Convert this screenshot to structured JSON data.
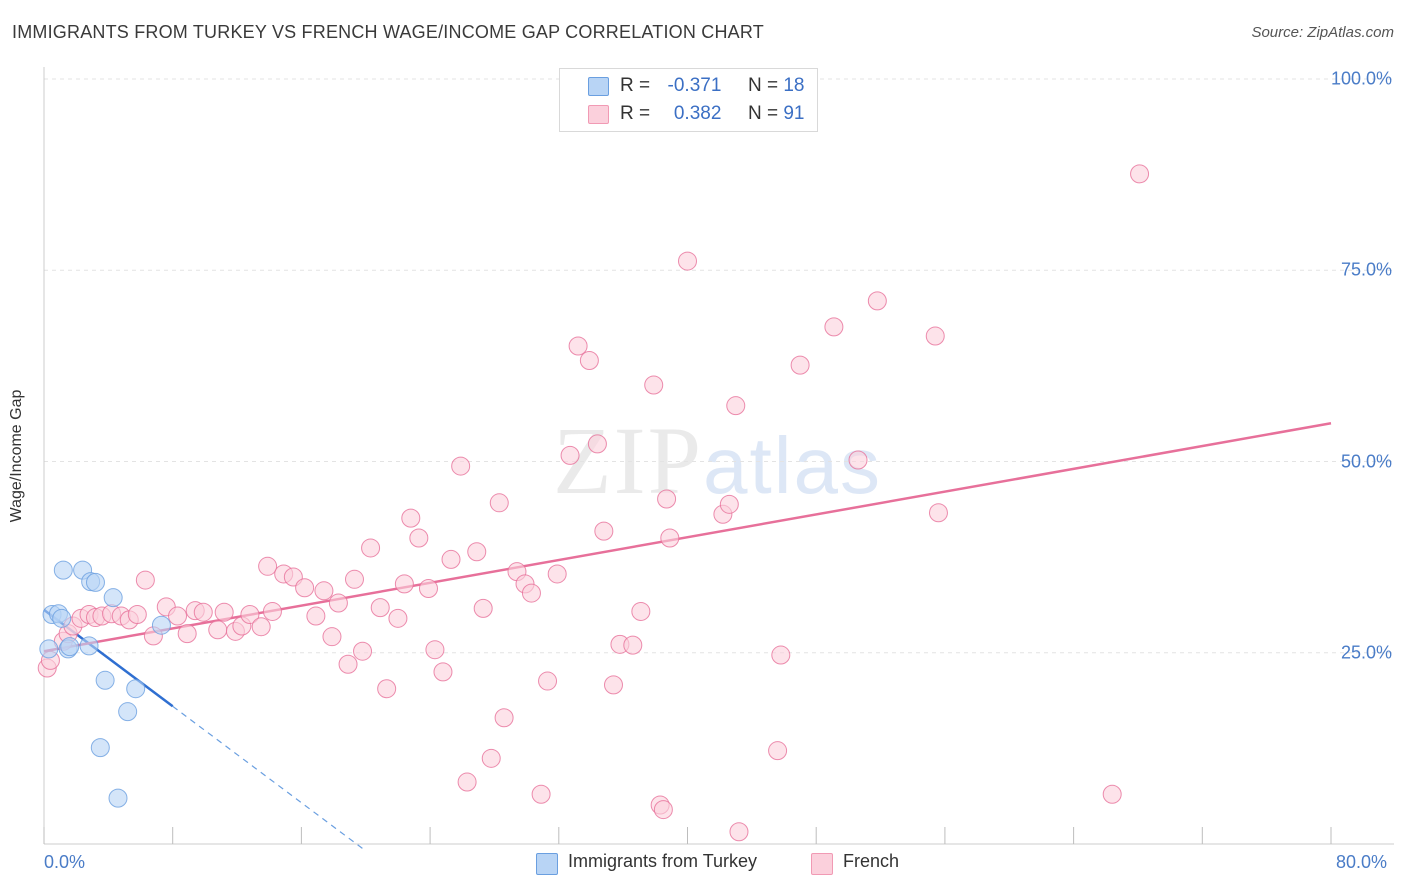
{
  "title": "IMMIGRANTS FROM TURKEY VS FRENCH WAGE/INCOME GAP CORRELATION CHART",
  "source": "Source: ZipAtlas.com",
  "watermark": {
    "zip": "ZIP",
    "atlas": "atlas"
  },
  "legend": {
    "r_label": "R =",
    "n_label": "N =",
    "rows": [
      {
        "r": "-0.371",
        "n": "18",
        "color": "#b8d4f5",
        "border": "#6a9fe0"
      },
      {
        "r": "0.382",
        "n": "91",
        "color": "#fbd0dc",
        "border": "#f19ab4"
      }
    ]
  },
  "bottom_legend": [
    {
      "label": "Immigrants from Turkey",
      "color": "#b8d4f5",
      "border": "#6a9fe0"
    },
    {
      "label": "French",
      "color": "#fbd0dc",
      "border": "#f19ab4"
    }
  ],
  "chart_data": {
    "type": "scatter",
    "title": "IMMIGRANTS FROM TURKEY VS FRENCH WAGE/INCOME GAP CORRELATION CHART",
    "xlabel": "",
    "ylabel": "Wage/Income Gap",
    "xlim": [
      0,
      80
    ],
    "ylim": [
      0,
      100
    ],
    "x_tick_labels": [
      "0.0%",
      "80.0%"
    ],
    "y_ticks": [
      25,
      50,
      75,
      100
    ],
    "y_tick_labels": [
      "25.0%",
      "50.0%",
      "75.0%",
      "100.0%"
    ],
    "series": [
      {
        "name": "Immigrants from Turkey",
        "color": "#6a9fe0",
        "fill": "#b8d4f5",
        "trend": {
          "x0": 0,
          "y0": 30.6,
          "x1": 8,
          "y1": 18.0,
          "x_dash_end": 20,
          "y_dash_end": -0.9
        },
        "points": [
          [
            0.3,
            25.5
          ],
          [
            0.5,
            30.0
          ],
          [
            0.9,
            30.1
          ],
          [
            1.1,
            29.5
          ],
          [
            1.5,
            25.5
          ],
          [
            1.6,
            25.8
          ],
          [
            1.2,
            35.8
          ],
          [
            2.4,
            35.8
          ],
          [
            2.9,
            34.3
          ],
          [
            3.2,
            34.2
          ],
          [
            4.3,
            32.2
          ],
          [
            2.8,
            25.9
          ],
          [
            3.8,
            21.4
          ],
          [
            5.7,
            20.3
          ],
          [
            5.2,
            17.3
          ],
          [
            3.5,
            12.6
          ],
          [
            4.6,
            6.0
          ],
          [
            7.3,
            28.6
          ]
        ]
      },
      {
        "name": "French",
        "color": "#e7709a",
        "fill": "#fbd0dc",
        "trend": {
          "x0": 0,
          "y0": 25.2,
          "x1": 80,
          "y1": 55.0
        },
        "points": [
          [
            0.2,
            23.0
          ],
          [
            0.4,
            24.0
          ],
          [
            1.2,
            26.5
          ],
          [
            1.5,
            27.5
          ],
          [
            1.8,
            28.5
          ],
          [
            2.3,
            29.5
          ],
          [
            2.8,
            30.0
          ],
          [
            3.2,
            29.6
          ],
          [
            3.6,
            29.8
          ],
          [
            4.2,
            30.1
          ],
          [
            4.8,
            29.8
          ],
          [
            5.3,
            29.3
          ],
          [
            5.8,
            30.0
          ],
          [
            6.3,
            34.5
          ],
          [
            6.8,
            27.2
          ],
          [
            7.6,
            31.0
          ],
          [
            8.3,
            29.8
          ],
          [
            8.9,
            27.5
          ],
          [
            9.4,
            30.5
          ],
          [
            9.9,
            30.3
          ],
          [
            10.8,
            28.0
          ],
          [
            11.2,
            30.3
          ],
          [
            11.9,
            27.8
          ],
          [
            12.3,
            28.5
          ],
          [
            12.8,
            30.0
          ],
          [
            13.5,
            28.4
          ],
          [
            13.9,
            36.3
          ],
          [
            14.2,
            30.4
          ],
          [
            14.9,
            35.3
          ],
          [
            15.5,
            34.9
          ],
          [
            16.2,
            33.5
          ],
          [
            16.9,
            29.8
          ],
          [
            17.4,
            33.1
          ],
          [
            17.9,
            27.1
          ],
          [
            18.3,
            31.5
          ],
          [
            18.9,
            23.5
          ],
          [
            19.3,
            34.6
          ],
          [
            19.8,
            25.2
          ],
          [
            20.3,
            38.7
          ],
          [
            20.9,
            30.9
          ],
          [
            21.3,
            20.3
          ],
          [
            22.0,
            29.5
          ],
          [
            22.4,
            34.0
          ],
          [
            22.8,
            42.6
          ],
          [
            23.3,
            40.0
          ],
          [
            23.9,
            33.4
          ],
          [
            24.3,
            25.4
          ],
          [
            24.8,
            22.5
          ],
          [
            25.3,
            37.2
          ],
          [
            25.9,
            49.4
          ],
          [
            26.3,
            8.1
          ],
          [
            26.9,
            38.2
          ],
          [
            27.3,
            30.8
          ],
          [
            27.8,
            11.2
          ],
          [
            28.3,
            44.6
          ],
          [
            28.6,
            16.5
          ],
          [
            29.4,
            35.6
          ],
          [
            29.9,
            34.0
          ],
          [
            30.3,
            32.8
          ],
          [
            30.9,
            6.5
          ],
          [
            31.3,
            21.3
          ],
          [
            31.9,
            35.3
          ],
          [
            32.7,
            50.8
          ],
          [
            33.2,
            65.1
          ],
          [
            33.9,
            63.2
          ],
          [
            34.4,
            52.3
          ],
          [
            34.8,
            40.9
          ],
          [
            35.4,
            20.8
          ],
          [
            35.8,
            26.1
          ],
          [
            36.6,
            26.0
          ],
          [
            37.1,
            30.4
          ],
          [
            37.9,
            60.0
          ],
          [
            38.3,
            5.1
          ],
          [
            38.7,
            45.1
          ],
          [
            38.9,
            40.0
          ],
          [
            40.0,
            76.2
          ],
          [
            42.2,
            43.1
          ],
          [
            42.6,
            44.4
          ],
          [
            43.0,
            57.3
          ],
          [
            45.6,
            12.2
          ],
          [
            45.8,
            24.7
          ],
          [
            47.0,
            62.6
          ],
          [
            49.1,
            67.6
          ],
          [
            50.6,
            50.2
          ],
          [
            51.8,
            71.0
          ],
          [
            55.4,
            66.4
          ],
          [
            55.6,
            43.3
          ],
          [
            66.4,
            6.5
          ],
          [
            68.1,
            87.6
          ],
          [
            43.2,
            1.6
          ],
          [
            38.5,
            4.5
          ]
        ]
      }
    ]
  }
}
